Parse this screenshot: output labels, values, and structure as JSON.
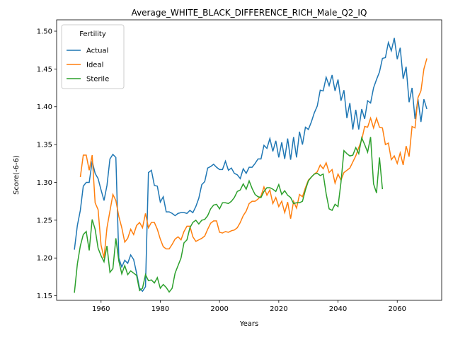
{
  "chart_data": {
    "type": "line",
    "title": "Average_WHITE_BLACK_DIFFERENCE_RICH_Male_Q2_IQ",
    "x_label": "Years",
    "y_label": "Score(-6-6)",
    "legend": {
      "title": "Fertility",
      "position": "upper left"
    },
    "x": [
      1951,
      1952,
      1953,
      1954,
      1955,
      1956,
      1957,
      1958,
      1959,
      1960,
      1961,
      1962,
      1963,
      1964,
      1965,
      1966,
      1967,
      1968,
      1969,
      1970,
      1971,
      1972,
      1973,
      1974,
      1975,
      1976,
      1977,
      1978,
      1979,
      1980,
      1981,
      1982,
      1983,
      1984,
      1985,
      1986,
      1987,
      1988,
      1989,
      1990,
      1991,
      1992,
      1993,
      1994,
      1995,
      1996,
      1997,
      1998,
      1999,
      2000,
      2001,
      2002,
      2003,
      2004,
      2005,
      2006,
      2007,
      2008,
      2009,
      2010,
      2011,
      2012,
      2013,
      2014,
      2015,
      2016,
      2017,
      2018,
      2019,
      2020,
      2021,
      2022,
      2023,
      2024,
      2025,
      2026,
      2027,
      2028,
      2029,
      2030,
      2031,
      2032,
      2033,
      2034,
      2035,
      2036,
      2037,
      2038,
      2039,
      2040,
      2041,
      2042,
      2043,
      2044,
      2045,
      2046,
      2047,
      2048,
      2049,
      2050,
      2051,
      2052,
      2053,
      2054,
      2055,
      2056,
      2057,
      2058,
      2059,
      2060,
      2061,
      2062,
      2063,
      2064,
      2065,
      2066,
      2067,
      2068,
      2069,
      2070
    ],
    "series": [
      {
        "name": "Actual",
        "color": "#1f77b4",
        "values": [
          1.211,
          1.243,
          1.263,
          1.295,
          1.3,
          1.3,
          1.328,
          1.312,
          1.305,
          1.29,
          1.276,
          1.296,
          1.331,
          1.337,
          1.333,
          1.2,
          1.188,
          1.197,
          1.193,
          1.204,
          1.198,
          1.18,
          1.16,
          1.156,
          1.162,
          1.313,
          1.316,
          1.296,
          1.295,
          1.274,
          1.281,
          1.261,
          1.261,
          1.259,
          1.256,
          1.259,
          1.26,
          1.26,
          1.259,
          1.263,
          1.26,
          1.268,
          1.279,
          1.297,
          1.301,
          1.319,
          1.321,
          1.324,
          1.32,
          1.317,
          1.317,
          1.328,
          1.316,
          1.319,
          1.312,
          1.31,
          1.305,
          1.318,
          1.312,
          1.32,
          1.32,
          1.325,
          1.331,
          1.331,
          1.349,
          1.345,
          1.358,
          1.341,
          1.355,
          1.333,
          1.353,
          1.331,
          1.358,
          1.33,
          1.36,
          1.333,
          1.367,
          1.35,
          1.373,
          1.37,
          1.38,
          1.392,
          1.401,
          1.422,
          1.421,
          1.439,
          1.428,
          1.442,
          1.421,
          1.436,
          1.408,
          1.422,
          1.385,
          1.405,
          1.37,
          1.396,
          1.37,
          1.397,
          1.384,
          1.408,
          1.405,
          1.425,
          1.436,
          1.446,
          1.464,
          1.465,
          1.485,
          1.474,
          1.491,
          1.463,
          1.478,
          1.437,
          1.453,
          1.406,
          1.425,
          1.384,
          1.41,
          1.38,
          1.41,
          1.397
        ]
      },
      {
        "name": "Ideal",
        "color": "#ff7f0e",
        "values": [
          null,
          null,
          1.307,
          1.336,
          1.336,
          1.316,
          1.336,
          1.273,
          1.264,
          1.217,
          1.2,
          1.24,
          1.262,
          1.284,
          1.276,
          1.255,
          1.24,
          1.221,
          1.226,
          1.238,
          1.231,
          1.243,
          1.247,
          1.24,
          1.259,
          1.24,
          1.247,
          1.247,
          1.238,
          1.225,
          1.215,
          1.212,
          1.212,
          1.218,
          1.225,
          1.228,
          1.224,
          1.235,
          1.242,
          1.242,
          1.228,
          1.222,
          1.224,
          1.226,
          1.229,
          1.238,
          1.246,
          1.249,
          1.249,
          1.234,
          1.233,
          1.235,
          1.234,
          1.236,
          1.237,
          1.24,
          1.247,
          1.256,
          1.262,
          1.272,
          1.275,
          1.275,
          1.278,
          1.282,
          1.294,
          1.283,
          1.29,
          1.272,
          1.28,
          1.268,
          1.275,
          1.26,
          1.274,
          1.252,
          1.275,
          1.266,
          1.284,
          1.281,
          1.293,
          1.303,
          1.307,
          1.311,
          1.314,
          1.323,
          1.318,
          1.326,
          1.313,
          1.317,
          1.299,
          1.311,
          1.303,
          1.313,
          1.316,
          1.319,
          1.327,
          1.335,
          1.346,
          1.356,
          1.374,
          1.373,
          1.385,
          1.372,
          1.385,
          1.373,
          1.372,
          1.35,
          1.352,
          1.33,
          1.335,
          1.325,
          1.339,
          1.323,
          1.348,
          1.334,
          1.374,
          1.372,
          1.412,
          1.421,
          1.45,
          1.464
        ]
      },
      {
        "name": "Sterile",
        "color": "#2ca02c",
        "values": [
          1.154,
          1.192,
          1.216,
          1.231,
          1.235,
          1.21,
          1.251,
          1.238,
          1.213,
          1.203,
          1.195,
          1.216,
          1.181,
          1.186,
          1.226,
          1.196,
          1.179,
          1.19,
          1.178,
          1.183,
          1.18,
          1.177,
          1.157,
          1.16,
          1.178,
          1.17,
          1.171,
          1.167,
          1.174,
          1.16,
          1.165,
          1.161,
          1.155,
          1.16,
          1.18,
          1.19,
          1.2,
          1.22,
          1.224,
          1.24,
          1.247,
          1.25,
          1.245,
          1.25,
          1.251,
          1.256,
          1.265,
          1.27,
          1.271,
          1.265,
          1.273,
          1.273,
          1.272,
          1.275,
          1.28,
          1.288,
          1.29,
          1.298,
          1.291,
          1.302,
          1.292,
          1.284,
          1.281,
          1.28,
          1.288,
          1.293,
          1.293,
          1.291,
          1.288,
          1.297,
          1.284,
          1.289,
          1.283,
          1.28,
          1.272,
          1.273,
          1.273,
          1.275,
          1.29,
          1.302,
          1.307,
          1.311,
          1.312,
          1.309,
          1.311,
          1.285,
          1.265,
          1.263,
          1.271,
          1.268,
          1.3,
          1.342,
          1.338,
          1.335,
          1.336,
          1.346,
          1.338,
          1.359,
          1.35,
          1.34,
          1.36,
          1.298,
          1.286,
          1.333,
          1.291,
          null,
          null,
          null,
          null,
          null,
          null,
          null,
          null,
          null,
          null,
          null,
          null,
          null,
          null,
          null
        ]
      }
    ],
    "xlim": [
      1945,
      2075
    ],
    "xticks": [
      1960,
      1980,
      2000,
      2020,
      2040,
      2060
    ],
    "ylim": [
      1.144,
      1.515
    ],
    "yticks": [
      1.15,
      {
        "value": 1.2,
        "label": "1.20"
      },
      1.25,
      {
        "value": 1.3,
        "label": "1.30"
      },
      1.35,
      {
        "value": 1.4,
        "label": "1.40"
      },
      1.45,
      {
        "value": 1.5,
        "label": "1.50"
      }
    ]
  }
}
